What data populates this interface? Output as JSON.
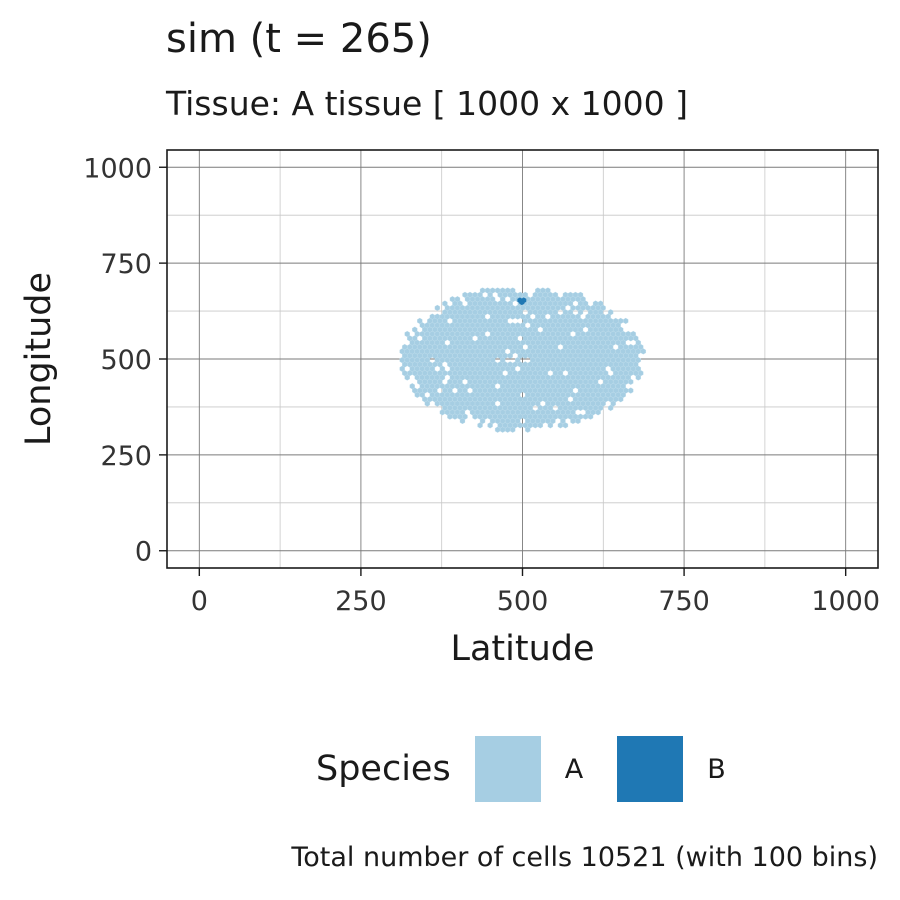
{
  "title": "sim (t = 265)",
  "subtitle": "Tissue: A tissue [ 1000 x 1000 ]",
  "caption": "Total number of cells 10521 (with 100 bins)",
  "legend": {
    "title": "Species",
    "items": [
      {
        "label": "A",
        "color": "#a6cee3"
      },
      {
        "label": "B",
        "color": "#1f78b4"
      }
    ]
  },
  "chart_data": {
    "type": "heatmap",
    "subtype": "hexbin",
    "xlabel": "Latitude",
    "ylabel": "Longitude",
    "xlim": [
      -50,
      1050
    ],
    "ylim": [
      -45,
      1045
    ],
    "xticks": [
      0,
      250,
      500,
      750,
      1000
    ],
    "yticks": [
      0,
      250,
      500,
      750,
      1000
    ],
    "grid": true,
    "legend_position": "bottom",
    "series": [
      {
        "name": "A",
        "color": "#a6cee3",
        "region": {
          "shape": "ellipse",
          "center": [
            500,
            500
          ],
          "radius_x": 190,
          "radius_y": 190
        }
      },
      {
        "name": "B",
        "color": "#1f78b4",
        "points": [
          [
            496,
            653
          ],
          [
            502,
            653
          ],
          [
            499,
            648
          ]
        ]
      }
    ]
  }
}
